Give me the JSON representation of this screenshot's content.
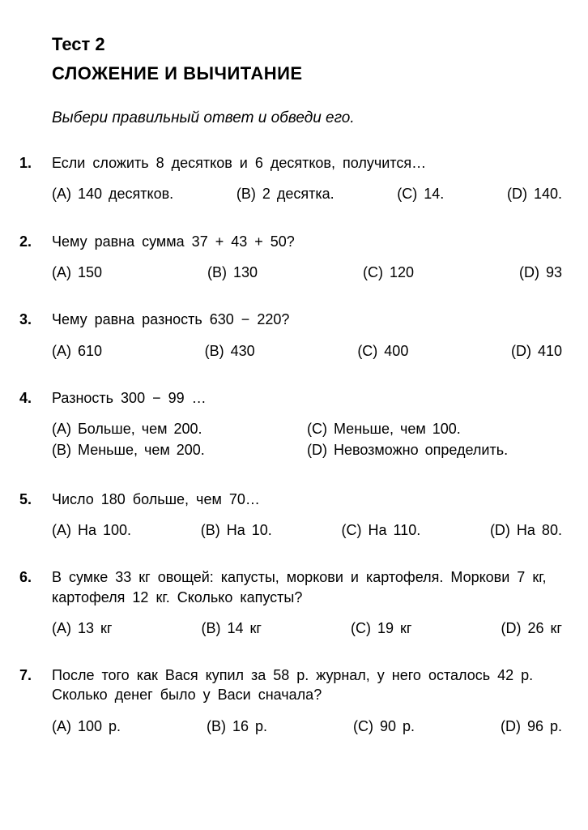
{
  "header": {
    "test_label": "Тест 2",
    "title": "СЛОЖЕНИЕ И ВЫЧИТАНИЕ"
  },
  "instruction": "Выбери правильный ответ и обведи его.",
  "questions": {
    "q1": {
      "num": "1.",
      "text": "Если сложить 8 десятков и 6 десятков, получится…",
      "a": "(A) 140 десятков.",
      "b": "(B) 2 десятка.",
      "c": "(C) 14.",
      "d": "(D) 140."
    },
    "q2": {
      "num": "2.",
      "text": "Чему равна сумма 37 + 43 + 50?",
      "a": "(A)  150",
      "b": "(B)  130",
      "c": "(C)  120",
      "d": "(D)  93"
    },
    "q3": {
      "num": "3.",
      "text": "Чему равна разность 630 − 220?",
      "a": "(A)  610",
      "b": "(B)  430",
      "c": "(C)  400",
      "d": "(D)  410"
    },
    "q4": {
      "num": "4.",
      "text": "Разность 300 − 99  …",
      "a": "(A)  Больше, чем 200.",
      "b": "(B)  Меньше, чем 200.",
      "c": "(C)  Меньше, чем 100.",
      "d": "(D)  Невозможно определить."
    },
    "q5": {
      "num": "5.",
      "text": "Число 180 больше, чем 70…",
      "a": "(A)  На 100.",
      "b": "(B)  На 10.",
      "c": "(C)  На 110.",
      "d": "(D)  На 80."
    },
    "q6": {
      "num": "6.",
      "text": "В сумке 33 кг овощей: капусты, моркови и картофеля. Моркови 7 кг, картофеля 12 кг. Сколько капусты?",
      "a": "(A)  13 кг",
      "b": "(B)  14 кг",
      "c": "(C)  19 кг",
      "d": "(D)  26 кг"
    },
    "q7": {
      "num": "7.",
      "text": "После того как Вася купил за 58 р. журнал, у него ос­талось 42 р. Сколько денег было у Васи сначала?",
      "a": "(A)  100 р.",
      "b": "(B)  16 р.",
      "c": "(C)  90 р.",
      "d": "(D)  96 р."
    }
  }
}
